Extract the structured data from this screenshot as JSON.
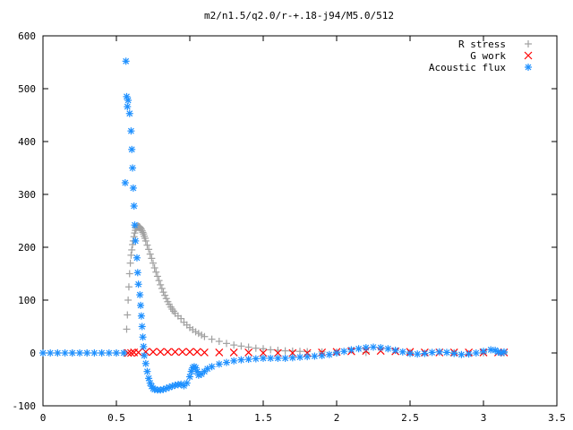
{
  "chart_data": {
    "type": "scatter",
    "title": "m2/n1.5/q2.0/r-+.18-j94/M5.0/512",
    "xlabel": "",
    "ylabel": "",
    "xlim": [
      0,
      3.5
    ],
    "ylim": [
      -100,
      600
    ],
    "xticks": [
      "0",
      "0.5",
      "1",
      "1.5",
      "2",
      "2.5",
      "3",
      "3.5"
    ],
    "yticks": [
      "-100",
      "0",
      "100",
      "200",
      "300",
      "400",
      "500",
      "600"
    ],
    "xtick_values": [
      0,
      0.5,
      1,
      1.5,
      2,
      2.5,
      3,
      3.5
    ],
    "ytick_values": [
      -100,
      0,
      100,
      200,
      300,
      400,
      500,
      600
    ],
    "grid": false,
    "legend_position": "top-right",
    "series": [
      {
        "name": "R stress",
        "marker": "plus",
        "color": "#a0a0a0",
        "points": [
          [
            0.0,
            0
          ],
          [
            0.1,
            0
          ],
          [
            0.2,
            0
          ],
          [
            0.3,
            0
          ],
          [
            0.4,
            0
          ],
          [
            0.5,
            0
          ],
          [
            0.55,
            0
          ],
          [
            0.56,
            0
          ],
          [
            0.57,
            45
          ],
          [
            0.575,
            72
          ],
          [
            0.58,
            100
          ],
          [
            0.585,
            125
          ],
          [
            0.59,
            150
          ],
          [
            0.595,
            170
          ],
          [
            0.6,
            185
          ],
          [
            0.605,
            195
          ],
          [
            0.61,
            205
          ],
          [
            0.615,
            212
          ],
          [
            0.62,
            220
          ],
          [
            0.625,
            227
          ],
          [
            0.63,
            232
          ],
          [
            0.635,
            236
          ],
          [
            0.64,
            238
          ],
          [
            0.645,
            239
          ],
          [
            0.65,
            240
          ],
          [
            0.655,
            239
          ],
          [
            0.66,
            238
          ],
          [
            0.665,
            236
          ],
          [
            0.67,
            234
          ],
          [
            0.675,
            231
          ],
          [
            0.68,
            228
          ],
          [
            0.685,
            225
          ],
          [
            0.69,
            221
          ],
          [
            0.695,
            217
          ],
          [
            0.7,
            212
          ],
          [
            0.71,
            204
          ],
          [
            0.72,
            196
          ],
          [
            0.73,
            187
          ],
          [
            0.74,
            179
          ],
          [
            0.75,
            170
          ],
          [
            0.76,
            161
          ],
          [
            0.77,
            153
          ],
          [
            0.78,
            145
          ],
          [
            0.79,
            137
          ],
          [
            0.8,
            129
          ],
          [
            0.81,
            122
          ],
          [
            0.82,
            115
          ],
          [
            0.83,
            109
          ],
          [
            0.84,
            103
          ],
          [
            0.85,
            97
          ],
          [
            0.86,
            92
          ],
          [
            0.87,
            87
          ],
          [
            0.88,
            83
          ],
          [
            0.89,
            79
          ],
          [
            0.9,
            75
          ],
          [
            0.92,
            70
          ],
          [
            0.94,
            65
          ],
          [
            0.96,
            58
          ],
          [
            0.98,
            53
          ],
          [
            1.0,
            48
          ],
          [
            1.02,
            44
          ],
          [
            1.04,
            40
          ],
          [
            1.06,
            37
          ],
          [
            1.08,
            34
          ],
          [
            1.1,
            31
          ],
          [
            1.15,
            26
          ],
          [
            1.2,
            22
          ],
          [
            1.25,
            18
          ],
          [
            1.3,
            15
          ],
          [
            1.35,
            13
          ],
          [
            1.4,
            11
          ],
          [
            1.45,
            9
          ],
          [
            1.5,
            8
          ],
          [
            1.55,
            6
          ],
          [
            1.6,
            5
          ],
          [
            1.65,
            4
          ],
          [
            1.7,
            3.5
          ],
          [
            1.75,
            3
          ],
          [
            1.8,
            2.5
          ],
          [
            1.9,
            2
          ],
          [
            2.0,
            1.5
          ],
          [
            2.2,
            1
          ],
          [
            2.5,
            0.6
          ],
          [
            2.8,
            0.4
          ],
          [
            3.0,
            0.3
          ],
          [
            3.14,
            0.2
          ]
        ]
      },
      {
        "name": "G work",
        "marker": "cross",
        "color": "#ff0000",
        "points": [
          [
            0.58,
            0
          ],
          [
            0.6,
            0
          ],
          [
            0.62,
            1
          ],
          [
            0.65,
            1
          ],
          [
            0.7,
            2
          ],
          [
            0.75,
            2
          ],
          [
            0.8,
            2
          ],
          [
            0.85,
            2
          ],
          [
            0.9,
            2
          ],
          [
            0.95,
            2
          ],
          [
            1.0,
            2
          ],
          [
            1.05,
            2
          ],
          [
            1.1,
            1
          ],
          [
            1.2,
            1
          ],
          [
            1.3,
            1
          ],
          [
            1.4,
            1
          ],
          [
            1.5,
            0
          ],
          [
            1.6,
            0
          ],
          [
            1.7,
            0
          ],
          [
            1.8,
            0
          ],
          [
            1.9,
            1
          ],
          [
            2.0,
            2
          ],
          [
            2.1,
            3
          ],
          [
            2.2,
            4
          ],
          [
            2.3,
            4
          ],
          [
            2.4,
            3
          ],
          [
            2.5,
            2
          ],
          [
            2.6,
            1
          ],
          [
            2.7,
            1
          ],
          [
            2.8,
            1
          ],
          [
            2.9,
            1
          ],
          [
            3.0,
            1
          ],
          [
            3.1,
            1
          ],
          [
            3.14,
            1
          ]
        ]
      },
      {
        "name": "Acoustic flux",
        "marker": "star",
        "color": "#1e90ff",
        "points": [
          [
            0.0,
            0
          ],
          [
            0.05,
            0
          ],
          [
            0.1,
            0
          ],
          [
            0.15,
            0
          ],
          [
            0.2,
            0
          ],
          [
            0.25,
            0
          ],
          [
            0.3,
            0
          ],
          [
            0.35,
            0
          ],
          [
            0.4,
            0
          ],
          [
            0.45,
            0
          ],
          [
            0.5,
            0
          ],
          [
            0.55,
            0
          ],
          [
            0.56,
            322
          ],
          [
            0.565,
            552
          ],
          [
            0.57,
            485
          ],
          [
            0.575,
            466
          ],
          [
            0.58,
            478
          ],
          [
            0.59,
            453
          ],
          [
            0.6,
            420
          ],
          [
            0.605,
            385
          ],
          [
            0.61,
            350
          ],
          [
            0.615,
            312
          ],
          [
            0.62,
            278
          ],
          [
            0.625,
            242
          ],
          [
            0.63,
            212
          ],
          [
            0.64,
            180
          ],
          [
            0.645,
            152
          ],
          [
            0.65,
            130
          ],
          [
            0.66,
            110
          ],
          [
            0.665,
            90
          ],
          [
            0.67,
            70
          ],
          [
            0.675,
            50
          ],
          [
            0.68,
            30
          ],
          [
            0.685,
            12
          ],
          [
            0.69,
            -5
          ],
          [
            0.7,
            -20
          ],
          [
            0.71,
            -35
          ],
          [
            0.72,
            -48
          ],
          [
            0.73,
            -57
          ],
          [
            0.74,
            -63
          ],
          [
            0.75,
            -67
          ],
          [
            0.76,
            -69
          ],
          [
            0.78,
            -70
          ],
          [
            0.8,
            -70
          ],
          [
            0.82,
            -69
          ],
          [
            0.84,
            -67
          ],
          [
            0.86,
            -65
          ],
          [
            0.88,
            -63
          ],
          [
            0.9,
            -61
          ],
          [
            0.92,
            -60
          ],
          [
            0.94,
            -59
          ],
          [
            0.96,
            -62
          ],
          [
            0.98,
            -57
          ],
          [
            1.0,
            -45
          ],
          [
            1.01,
            -35
          ],
          [
            1.02,
            -28
          ],
          [
            1.03,
            -26
          ],
          [
            1.04,
            -28
          ],
          [
            1.05,
            -35
          ],
          [
            1.06,
            -42
          ],
          [
            1.08,
            -40
          ],
          [
            1.1,
            -35
          ],
          [
            1.12,
            -30
          ],
          [
            1.15,
            -26
          ],
          [
            1.2,
            -21
          ],
          [
            1.25,
            -18
          ],
          [
            1.3,
            -15
          ],
          [
            1.35,
            -13
          ],
          [
            1.4,
            -12
          ],
          [
            1.45,
            -11
          ],
          [
            1.5,
            -10
          ],
          [
            1.55,
            -10
          ],
          [
            1.6,
            -10
          ],
          [
            1.65,
            -10
          ],
          [
            1.7,
            -9
          ],
          [
            1.75,
            -8
          ],
          [
            1.8,
            -7
          ],
          [
            1.85,
            -6
          ],
          [
            1.9,
            -5
          ],
          [
            1.95,
            -3
          ],
          [
            2.0,
            0
          ],
          [
            2.05,
            3
          ],
          [
            2.1,
            6
          ],
          [
            2.15,
            8
          ],
          [
            2.2,
            10
          ],
          [
            2.25,
            11
          ],
          [
            2.3,
            10
          ],
          [
            2.35,
            8
          ],
          [
            2.4,
            5
          ],
          [
            2.45,
            2
          ],
          [
            2.5,
            -1
          ],
          [
            2.55,
            -2
          ],
          [
            2.6,
            -1
          ],
          [
            2.65,
            1
          ],
          [
            2.7,
            2
          ],
          [
            2.75,
            1
          ],
          [
            2.8,
            -1
          ],
          [
            2.85,
            -3
          ],
          [
            2.9,
            -2
          ],
          [
            2.95,
            0
          ],
          [
            3.0,
            3
          ],
          [
            3.05,
            6
          ],
          [
            3.08,
            5
          ],
          [
            3.1,
            2
          ],
          [
            3.12,
            0
          ],
          [
            3.14,
            2
          ]
        ]
      }
    ]
  }
}
